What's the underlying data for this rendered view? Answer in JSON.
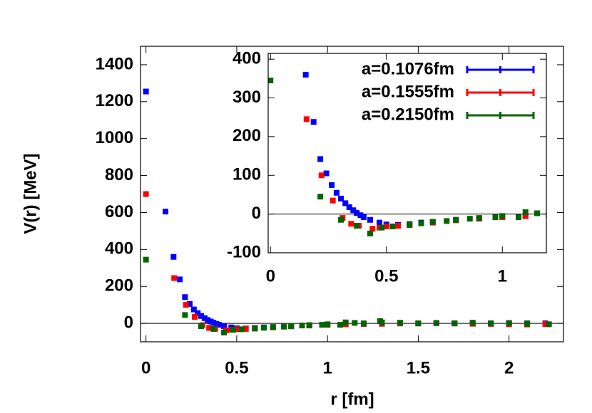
{
  "chart_data": {
    "type": "scatter",
    "xlabel": "r [fm]",
    "ylabel": "V(r) [MeV]",
    "xlim": [
      -0.03,
      2.3
    ],
    "ylim": [
      -100,
      1500
    ],
    "xticks": [
      0,
      0.5,
      1,
      1.5,
      2
    ],
    "yticks": [
      0,
      200,
      400,
      600,
      800,
      1000,
      1200,
      1400
    ],
    "zero_line": true,
    "series": [
      {
        "name": "a=0.1076fm",
        "color": "#0000ff",
        "x": [
          0,
          0.1076,
          0.152,
          0.186,
          0.215,
          0.241,
          0.264,
          0.285,
          0.304,
          0.323,
          0.34,
          0.357,
          0.372,
          0.388,
          0.402,
          0.43,
          0.47,
          0.5,
          0.55,
          0.6,
          0.65,
          0.7,
          0.8,
          0.9,
          1.0,
          1.1,
          1.2,
          1.3,
          1.4,
          1.5,
          1.6,
          1.7,
          1.8,
          1.9,
          2.0,
          2.1,
          2.2
        ],
        "values": [
          1255,
          605,
          360,
          238,
          142,
          105,
          75,
          55,
          40,
          28,
          18,
          10,
          3,
          -3,
          -8,
          -15,
          -22,
          -27,
          -28,
          -26,
          -22,
          -20,
          -15,
          -11,
          -8,
          -5,
          -3,
          -2,
          0,
          0,
          1,
          0,
          -1,
          0,
          1,
          0,
          0
        ]
      },
      {
        "name": "a=0.1555fm",
        "color": "#ff0000",
        "x": [
          0,
          0.1555,
          0.22,
          0.269,
          0.311,
          0.348,
          0.381,
          0.44,
          0.47,
          0.5,
          0.55,
          0.6,
          0.7,
          0.8,
          0.9,
          1.0,
          1.1,
          1.2,
          1.3,
          1.4,
          1.5,
          1.6,
          1.7,
          1.8,
          1.9,
          2.0,
          2.1,
          2.2
        ],
        "values": [
          700,
          245,
          100,
          35,
          -10,
          -25,
          -30,
          -38,
          -35,
          -32,
          -30,
          -28,
          -22,
          -16,
          -12,
          -8,
          -5,
          -3,
          -2,
          0,
          0,
          1,
          0,
          -2,
          -3,
          -5,
          -6,
          -4
        ]
      },
      {
        "name": "a=0.2150fm",
        "color": "#006400",
        "x": [
          0,
          0.215,
          0.304,
          0.372,
          0.43,
          0.48,
          0.527,
          0.6,
          0.65,
          0.7,
          0.76,
          0.8,
          0.86,
          0.9,
          0.97,
          1.0,
          1.07,
          1.1,
          1.15,
          1.2,
          1.29,
          1.3,
          1.4,
          1.5,
          1.6,
          1.7,
          1.8,
          1.9,
          2.0,
          2.1,
          2.22
        ],
        "values": [
          345,
          45,
          -15,
          -30,
          -50,
          -35,
          -32,
          -28,
          -24,
          -20,
          -18,
          -15,
          -12,
          -10,
          -8,
          -5,
          -8,
          5,
          2,
          0,
          12,
          5,
          3,
          0,
          2,
          0,
          3,
          0,
          1,
          -2,
          -5
        ]
      }
    ],
    "inset": {
      "xlim": [
        -0.01,
        1.19
      ],
      "ylim": [
        -100,
        415
      ],
      "xticks": [
        0,
        0.5,
        1
      ],
      "yticks": [
        -100,
        0,
        100,
        200,
        300,
        400
      ],
      "legend": "upper right"
    }
  }
}
